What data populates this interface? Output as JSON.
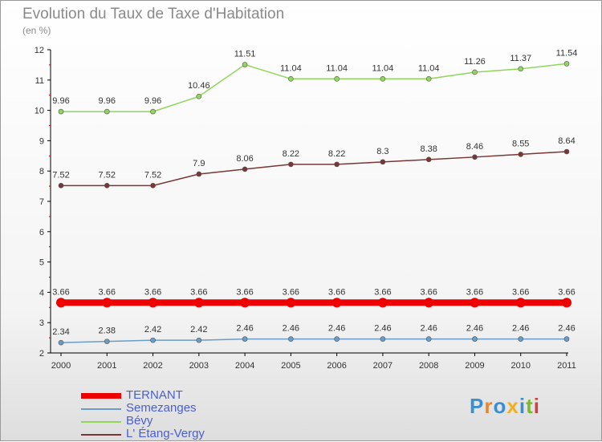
{
  "title": "Evolution du Taux de Taxe d'Habitation",
  "subtitle": "(en %)",
  "logo": {
    "text": "Proxiti",
    "colors": [
      "#3a8fd0",
      "#e8872a",
      "#3a8fd0",
      "#f0b020",
      "#3a8fd0",
      "#7ab830",
      "#d04040"
    ]
  },
  "chart_data": {
    "type": "line",
    "x": [
      "2000",
      "2001",
      "2002",
      "2003",
      "2004",
      "2005",
      "2006",
      "2007",
      "2008",
      "2009",
      "2010",
      "2011"
    ],
    "ylim": [
      2,
      12
    ],
    "yticks": [
      "2",
      "3",
      "4",
      "5",
      "6",
      "7",
      "8",
      "9",
      "10",
      "11",
      "12"
    ],
    "grid": false,
    "legend_position": "bottom-left",
    "series": [
      {
        "name": "TERNANT",
        "color": "#ee0000",
        "thick": true,
        "values": [
          3.66,
          3.66,
          3.66,
          3.66,
          3.66,
          3.66,
          3.66,
          3.66,
          3.66,
          3.66,
          3.66,
          3.66
        ],
        "labels": [
          "3.66",
          "3.66",
          "3.66",
          "3.66",
          "3.66",
          "3.66",
          "3.66",
          "3.66",
          "3.66",
          "3.66",
          "3.66",
          "3.66"
        ]
      },
      {
        "name": "Semezanges",
        "color": "#6a9cc8",
        "thick": false,
        "values": [
          2.34,
          2.38,
          2.42,
          2.42,
          2.46,
          2.46,
          2.46,
          2.46,
          2.46,
          2.46,
          2.46,
          2.46
        ],
        "labels": [
          "2.34",
          "2.38",
          "2.42",
          "2.42",
          "2.46",
          "2.46",
          "2.46",
          "2.46",
          "2.46",
          "2.46",
          "2.46",
          "2.46"
        ]
      },
      {
        "name": "Bévy",
        "color": "#8fd65a",
        "thick": false,
        "values": [
          9.96,
          9.96,
          9.96,
          10.46,
          11.51,
          11.04,
          11.04,
          11.04,
          11.04,
          11.26,
          11.37,
          11.54
        ],
        "labels": [
          "9.96",
          "9.96",
          "9.96",
          "10.46",
          "11.51",
          "11.04",
          "11.04",
          "11.04",
          "11.04",
          "11.26",
          "11.37",
          "11.54"
        ]
      },
      {
        "name": "L' Étang-Vergy",
        "color": "#7a3535",
        "thick": false,
        "values": [
          7.52,
          7.52,
          7.52,
          7.9,
          8.06,
          8.22,
          8.22,
          8.3,
          8.38,
          8.46,
          8.55,
          8.64
        ],
        "labels": [
          "7.52",
          "7.52",
          "7.52",
          "7.9",
          "8.06",
          "8.22",
          "8.22",
          "8.3",
          "8.38",
          "8.46",
          "8.55",
          "8.64"
        ]
      }
    ]
  }
}
